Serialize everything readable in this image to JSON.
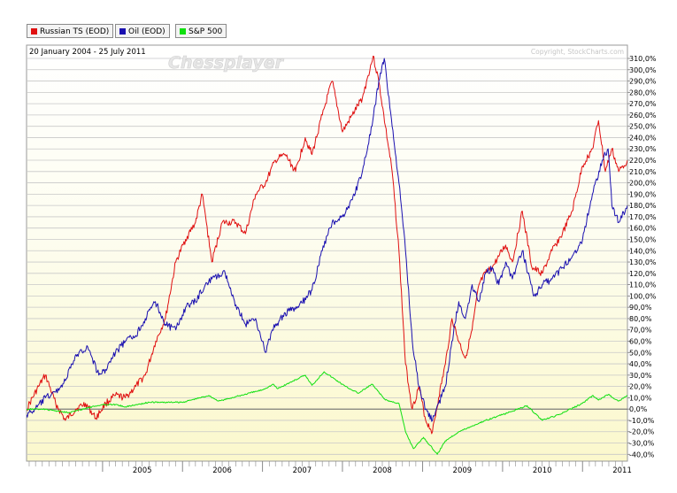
{
  "header": {
    "date_range": "20 January 2004 - 25 July 2011",
    "watermark": "Chessplayer",
    "copyright": "Copyright, StockCharts.com"
  },
  "legend": [
    {
      "label": "Russian TS (EOD)",
      "color": "#e01010"
    },
    {
      "label": "Oil (EOD)",
      "color": "#1a10b0"
    },
    {
      "label": "S&P 500",
      "color": "#10e010"
    }
  ],
  "chart_data": {
    "type": "line",
    "x_tick_labels": [
      "2005",
      "2006",
      "2007",
      "2008",
      "2009",
      "2010",
      "2011"
    ],
    "x_tick_years": [
      2005,
      2006,
      2007,
      2008,
      2009,
      2010,
      2011
    ],
    "y_tick_labels": [
      "310,0%",
      "300,0%",
      "290,0%",
      "280,0%",
      "270,0%",
      "260,0%",
      "250,0%",
      "240,0%",
      "230,0%",
      "220,0%",
      "210,0%",
      "200,0%",
      "190,0%",
      "180,0%",
      "170,0%",
      "160,0%",
      "150,0%",
      "140,0%",
      "130,0%",
      "120,0%",
      "110,0%",
      "100,0%",
      "90,0%",
      "80,0%",
      "70,0%",
      "60,0%",
      "50,0%",
      "40,0%",
      "30,0%",
      "20,0%",
      "10,0%",
      "0,0%",
      "-10,0%",
      "-20,0%",
      "-30,0%",
      "-40,0%"
    ],
    "ylim": [
      -45,
      315
    ],
    "xlim": [
      "2004-01-20",
      "2011-07-25"
    ],
    "grid": true,
    "legend_position": "top-left",
    "series": [
      {
        "name": "Russian TS (EOD)",
        "color": "#e01010",
        "points": [
          [
            "2004-01-20",
            0
          ],
          [
            "2004-03-15",
            20
          ],
          [
            "2004-04-15",
            30
          ],
          [
            "2004-06-01",
            5
          ],
          [
            "2004-07-15",
            -10
          ],
          [
            "2004-09-01",
            0
          ],
          [
            "2004-10-15",
            5
          ],
          [
            "2004-12-01",
            -8
          ],
          [
            "2005-01-15",
            5
          ],
          [
            "2005-03-01",
            12
          ],
          [
            "2005-04-15",
            10
          ],
          [
            "2005-06-01",
            20
          ],
          [
            "2005-07-15",
            30
          ],
          [
            "2005-09-01",
            60
          ],
          [
            "2005-10-15",
            80
          ],
          [
            "2005-12-01",
            130
          ],
          [
            "2006-01-15",
            150
          ],
          [
            "2006-03-01",
            165
          ],
          [
            "2006-04-01",
            190
          ],
          [
            "2006-05-15",
            130
          ],
          [
            "2006-07-01",
            165
          ],
          [
            "2006-09-01",
            165
          ],
          [
            "2006-10-15",
            155
          ],
          [
            "2006-12-01",
            190
          ],
          [
            "2007-01-15",
            200
          ],
          [
            "2007-03-01",
            220
          ],
          [
            "2007-04-15",
            225
          ],
          [
            "2007-06-01",
            210
          ],
          [
            "2007-07-15",
            240
          ],
          [
            "2007-08-15",
            225
          ],
          [
            "2007-10-01",
            260
          ],
          [
            "2007-11-15",
            290
          ],
          [
            "2008-01-01",
            245
          ],
          [
            "2008-02-15",
            260
          ],
          [
            "2008-04-01",
            275
          ],
          [
            "2008-05-20",
            312
          ],
          [
            "2008-06-15",
            290
          ],
          [
            "2008-07-15",
            250
          ],
          [
            "2008-08-15",
            210
          ],
          [
            "2008-09-15",
            140
          ],
          [
            "2008-10-15",
            40
          ],
          [
            "2008-11-15",
            0
          ],
          [
            "2008-12-15",
            20
          ],
          [
            "2009-01-15",
            -10
          ],
          [
            "2009-02-15",
            -20
          ],
          [
            "2009-03-15",
            10
          ],
          [
            "2009-04-15",
            40
          ],
          [
            "2009-05-15",
            80
          ],
          [
            "2009-06-15",
            60
          ],
          [
            "2009-07-15",
            45
          ],
          [
            "2009-08-15",
            70
          ],
          [
            "2009-09-15",
            110
          ],
          [
            "2009-10-15",
            120
          ],
          [
            "2009-11-15",
            125
          ],
          [
            "2009-12-15",
            135
          ],
          [
            "2010-01-15",
            145
          ],
          [
            "2010-02-15",
            130
          ],
          [
            "2010-04-01",
            175
          ],
          [
            "2010-05-15",
            125
          ],
          [
            "2010-07-01",
            120
          ],
          [
            "2010-08-15",
            140
          ],
          [
            "2010-10-01",
            155
          ],
          [
            "2010-11-15",
            175
          ],
          [
            "2011-01-01",
            215
          ],
          [
            "2011-02-15",
            230
          ],
          [
            "2011-03-15",
            255
          ],
          [
            "2011-04-15",
            210
          ],
          [
            "2011-05-15",
            230
          ],
          [
            "2011-06-15",
            210
          ],
          [
            "2011-07-25",
            220
          ]
        ]
      },
      {
        "name": "Oil (EOD)",
        "color": "#1a10b0",
        "points": [
          [
            "2004-01-20",
            -5
          ],
          [
            "2004-03-01",
            0
          ],
          [
            "2004-04-15",
            10
          ],
          [
            "2004-06-01",
            15
          ],
          [
            "2004-07-15",
            25
          ],
          [
            "2004-08-15",
            40
          ],
          [
            "2004-09-15",
            50
          ],
          [
            "2004-10-25",
            55
          ],
          [
            "2004-12-15",
            30
          ],
          [
            "2005-01-15",
            35
          ],
          [
            "2005-03-01",
            50
          ],
          [
            "2005-04-15",
            60
          ],
          [
            "2005-06-01",
            65
          ],
          [
            "2005-07-15",
            80
          ],
          [
            "2005-08-30",
            95
          ],
          [
            "2005-10-15",
            75
          ],
          [
            "2005-12-01",
            70
          ],
          [
            "2006-01-15",
            90
          ],
          [
            "2006-03-01",
            95
          ],
          [
            "2006-04-15",
            110
          ],
          [
            "2006-05-15",
            115
          ],
          [
            "2006-07-15",
            120
          ],
          [
            "2006-08-15",
            100
          ],
          [
            "2006-10-15",
            75
          ],
          [
            "2006-12-01",
            80
          ],
          [
            "2007-01-15",
            50
          ],
          [
            "2007-02-15",
            70
          ],
          [
            "2007-04-15",
            85
          ],
          [
            "2007-06-15",
            90
          ],
          [
            "2007-08-15",
            105
          ],
          [
            "2007-10-01",
            140
          ],
          [
            "2007-11-15",
            165
          ],
          [
            "2008-01-01",
            170
          ],
          [
            "2008-02-15",
            185
          ],
          [
            "2008-04-01",
            210
          ],
          [
            "2008-05-15",
            250
          ],
          [
            "2008-06-15",
            290
          ],
          [
            "2008-07-10",
            310
          ],
          [
            "2008-08-15",
            250
          ],
          [
            "2008-09-15",
            200
          ],
          [
            "2008-10-15",
            140
          ],
          [
            "2008-11-15",
            60
          ],
          [
            "2008-12-15",
            20
          ],
          [
            "2009-01-15",
            0
          ],
          [
            "2009-02-15",
            -10
          ],
          [
            "2009-03-15",
            5
          ],
          [
            "2009-04-15",
            20
          ],
          [
            "2009-05-15",
            60
          ],
          [
            "2009-06-15",
            95
          ],
          [
            "2009-07-15",
            80
          ],
          [
            "2009-08-15",
            110
          ],
          [
            "2009-09-15",
            95
          ],
          [
            "2009-10-15",
            120
          ],
          [
            "2009-11-15",
            125
          ],
          [
            "2009-12-15",
            110
          ],
          [
            "2010-01-15",
            130
          ],
          [
            "2010-02-15",
            115
          ],
          [
            "2010-04-01",
            140
          ],
          [
            "2010-05-25",
            100
          ],
          [
            "2010-07-01",
            110
          ],
          [
            "2010-08-15",
            115
          ],
          [
            "2010-10-01",
            125
          ],
          [
            "2010-11-15",
            135
          ],
          [
            "2011-01-01",
            150
          ],
          [
            "2011-02-15",
            190
          ],
          [
            "2011-04-01",
            220
          ],
          [
            "2011-04-28",
            230
          ],
          [
            "2011-05-15",
            180
          ],
          [
            "2011-06-15",
            165
          ],
          [
            "2011-07-25",
            180
          ]
        ]
      },
      {
        "name": "S&P 500",
        "color": "#10e010",
        "points": [
          [
            "2004-01-20",
            0
          ],
          [
            "2004-04-01",
            0
          ],
          [
            "2004-08-01",
            -3
          ],
          [
            "2004-12-31",
            4
          ],
          [
            "2005-03-01",
            4
          ],
          [
            "2005-04-15",
            2
          ],
          [
            "2005-08-01",
            6
          ],
          [
            "2005-12-31",
            6
          ],
          [
            "2006-05-01",
            12
          ],
          [
            "2006-06-15",
            7
          ],
          [
            "2006-12-31",
            17
          ],
          [
            "2007-02-20",
            22
          ],
          [
            "2007-03-10",
            18
          ],
          [
            "2007-07-15",
            30
          ],
          [
            "2007-08-15",
            21
          ],
          [
            "2007-10-09",
            33
          ],
          [
            "2008-01-15",
            20
          ],
          [
            "2008-03-15",
            14
          ],
          [
            "2008-05-15",
            22
          ],
          [
            "2008-07-15",
            8
          ],
          [
            "2008-09-15",
            5
          ],
          [
            "2008-10-15",
            -20
          ],
          [
            "2008-11-20",
            -35
          ],
          [
            "2009-01-05",
            -25
          ],
          [
            "2009-03-09",
            -40
          ],
          [
            "2009-04-15",
            -28
          ],
          [
            "2009-06-15",
            -20
          ],
          [
            "2009-08-15",
            -15
          ],
          [
            "2009-10-15",
            -10
          ],
          [
            "2009-12-31",
            -5
          ],
          [
            "2010-04-23",
            3
          ],
          [
            "2010-07-01",
            -10
          ],
          [
            "2010-09-15",
            -5
          ],
          [
            "2010-12-31",
            5
          ],
          [
            "2011-02-18",
            12
          ],
          [
            "2011-03-15",
            8
          ],
          [
            "2011-04-29",
            13
          ],
          [
            "2011-06-15",
            7
          ],
          [
            "2011-07-25",
            12
          ]
        ]
      }
    ]
  }
}
